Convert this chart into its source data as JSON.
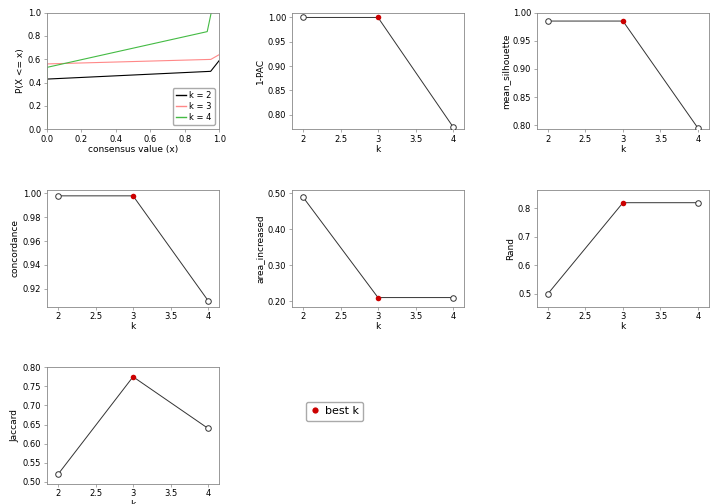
{
  "k_values": [
    2,
    3,
    4
  ],
  "one_pac": [
    1.0,
    1.0,
    0.775
  ],
  "mean_silhouette": [
    0.985,
    0.985,
    0.795
  ],
  "concordance": [
    0.998,
    0.998,
    0.91
  ],
  "area_increased": [
    0.49,
    0.21,
    0.21
  ],
  "rand": [
    0.5,
    0.82,
    0.82
  ],
  "jaccard": [
    0.52,
    0.775,
    0.64
  ],
  "best_k": 3,
  "ecdf_colors": [
    "#000000",
    "#FF8888",
    "#44BB44"
  ],
  "ecdf_labels": [
    "k = 2",
    "k = 3",
    "k = 4"
  ],
  "line_color": "#333333",
  "best_dot_color": "#CC0000",
  "bg_color": "#FFFFFF",
  "axis_fontsize": 6.5,
  "tick_fontsize": 6.0,
  "legend_fontsize": 6.0
}
